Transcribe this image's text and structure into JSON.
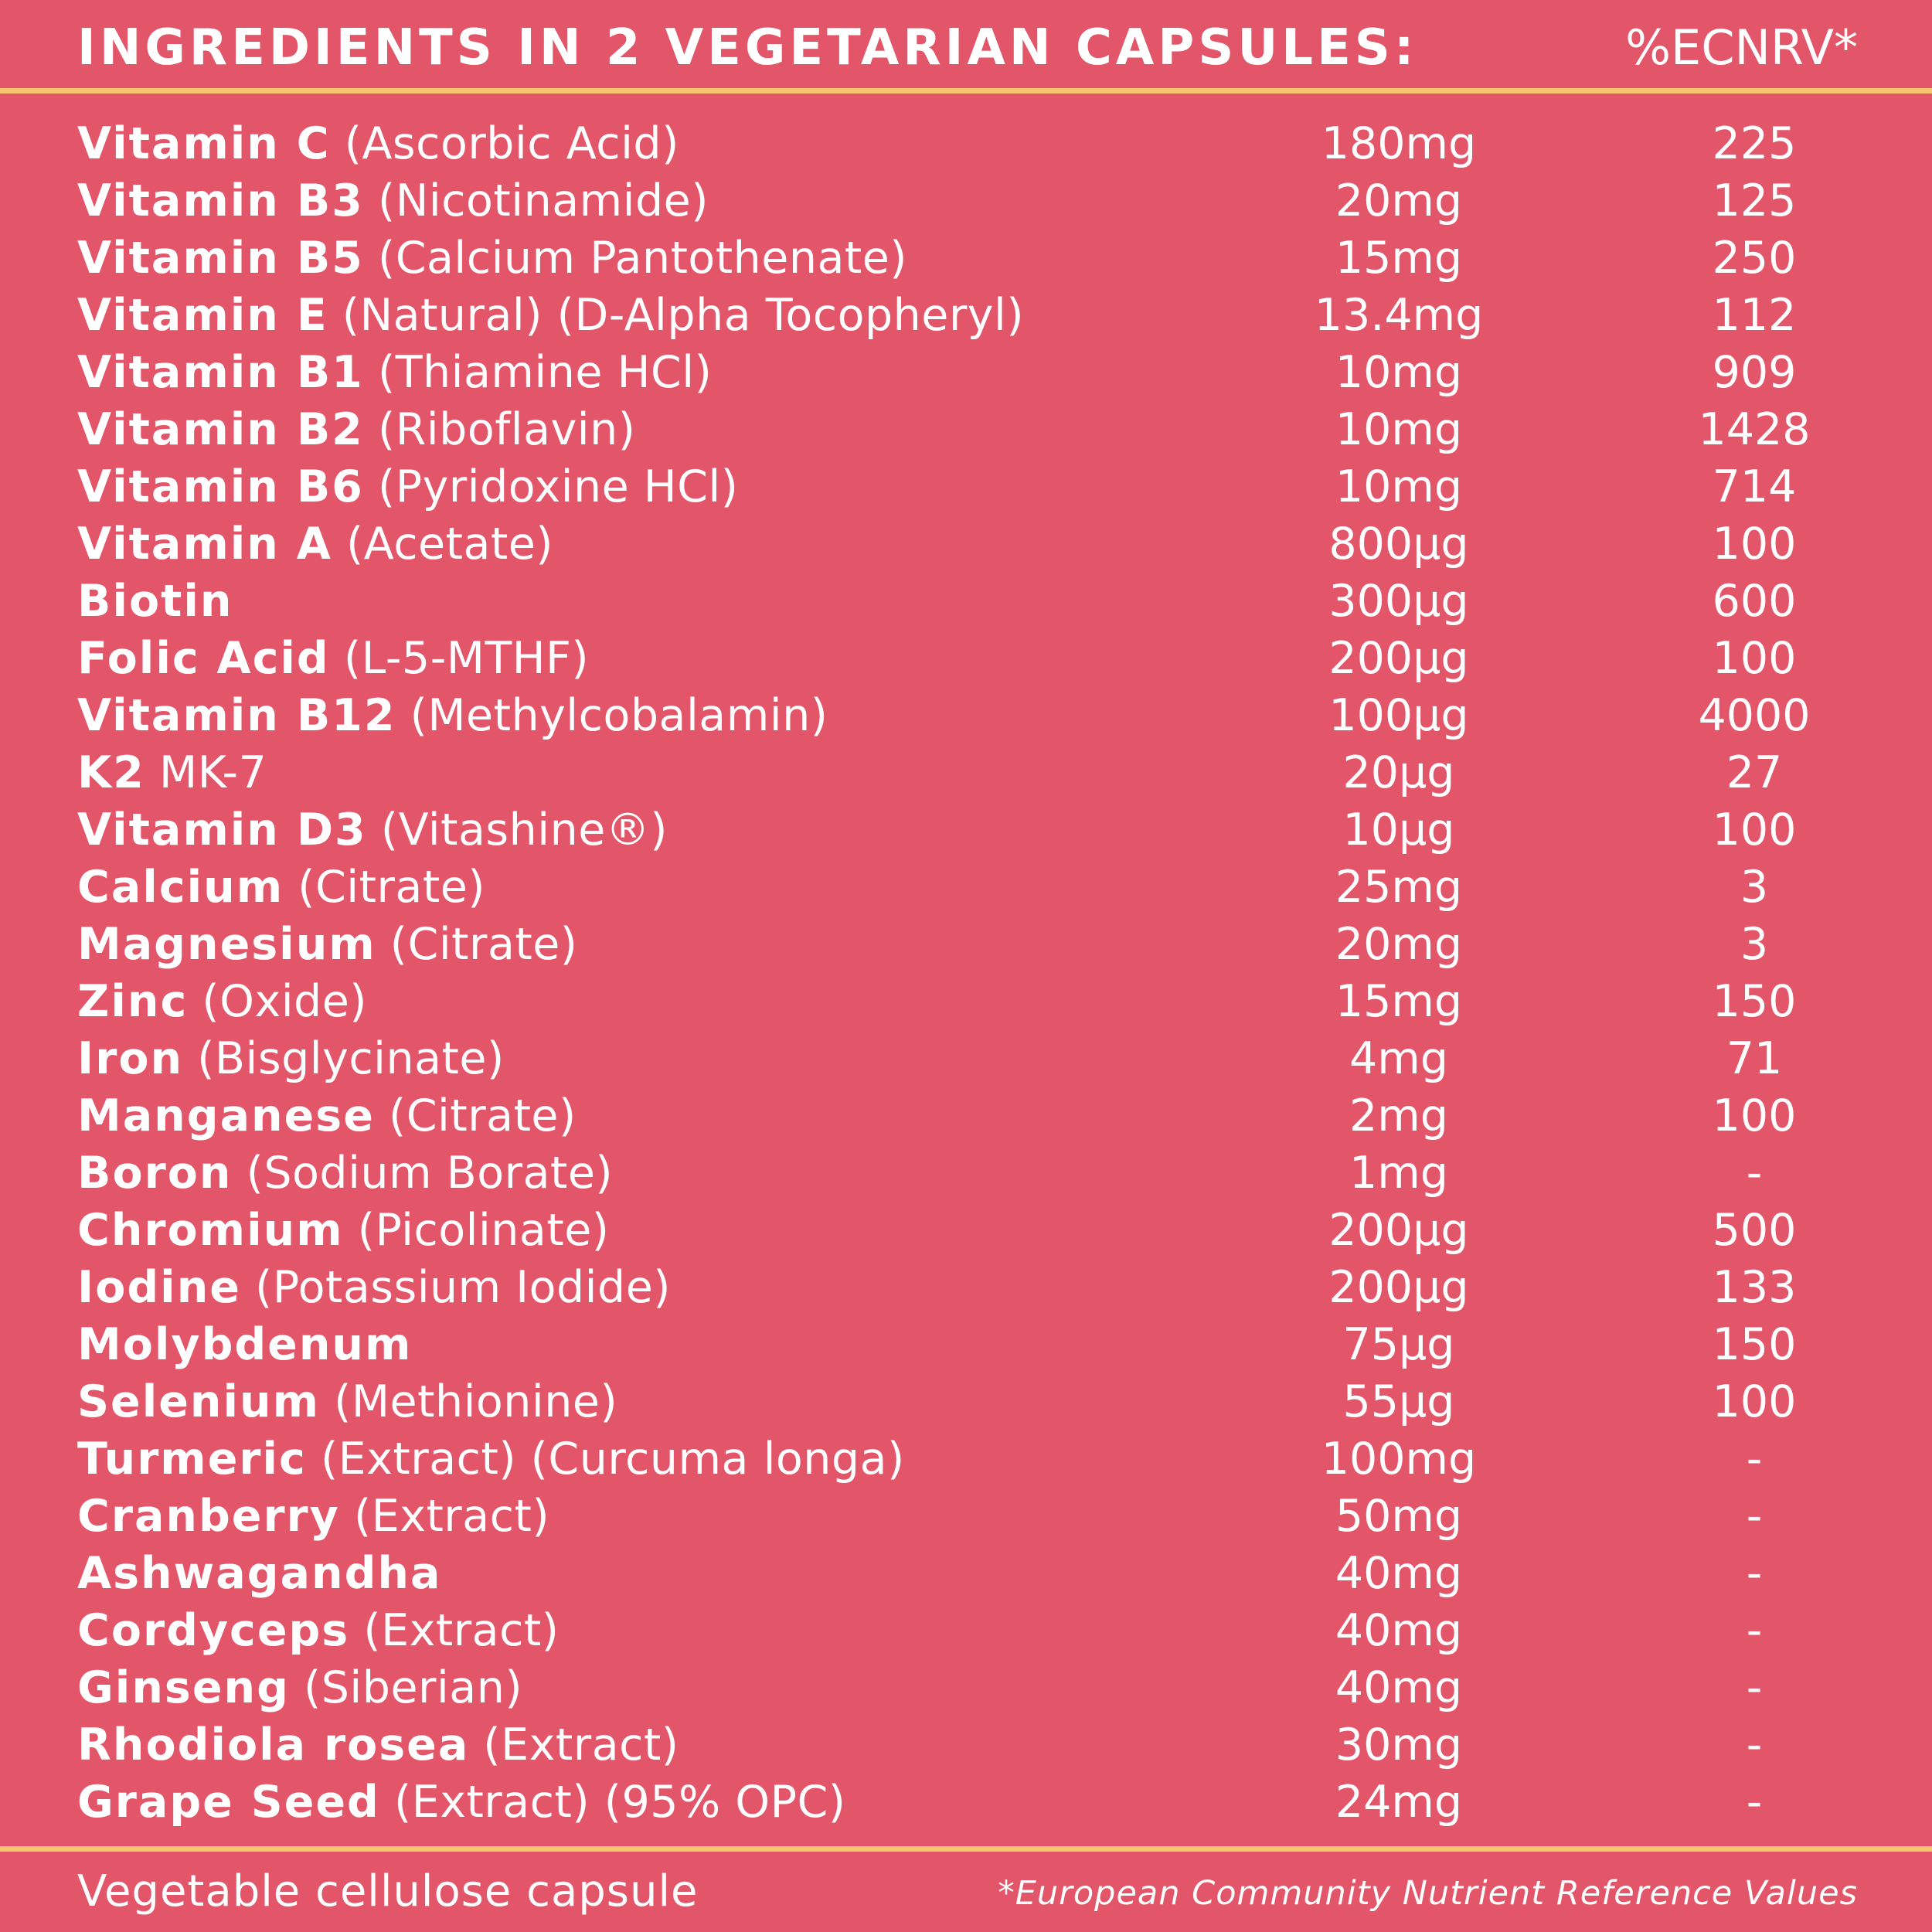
{
  "header": {
    "title": "INGREDIENTS IN 2 VEGETARIAN CAPSULES:",
    "nrv_label": "%ECNRV*"
  },
  "colors": {
    "background": "#e35669",
    "rule": "#f6c56d",
    "text": "#ffffff"
  },
  "ingredients": [
    {
      "name": "Vitamin C",
      "desc": "(Ascorbic Acid)",
      "amount": "180mg",
      "nrv": "225"
    },
    {
      "name": "Vitamin B3",
      "desc": "(Nicotinamide)",
      "amount": "20mg",
      "nrv": "125"
    },
    {
      "name": "Vitamin B5",
      "desc": "(Calcium Pantothenate)",
      "amount": "15mg",
      "nrv": "250"
    },
    {
      "name": "Vitamin E",
      "desc": "(Natural) (D-Alpha Tocopheryl)",
      "amount": "13.4mg",
      "nrv": "112"
    },
    {
      "name": "Vitamin B1",
      "desc": "(Thiamine HCl)",
      "amount": "10mg",
      "nrv": "909"
    },
    {
      "name": "Vitamin B2",
      "desc": "(Riboflavin)",
      "amount": "10mg",
      "nrv": "1428"
    },
    {
      "name": "Vitamin B6",
      "desc": "(Pyridoxine HCl)",
      "amount": "10mg",
      "nrv": "714"
    },
    {
      "name": "Vitamin A",
      "desc": "(Acetate)",
      "amount": "800µg",
      "nrv": "100"
    },
    {
      "name": "Biotin",
      "desc": "",
      "amount": "300µg",
      "nrv": "600"
    },
    {
      "name": "Folic Acid",
      "desc": "(L-5-MTHF)",
      "amount": "200µg",
      "nrv": "100"
    },
    {
      "name": "Vitamin B12",
      "desc": "(Methylcobalamin)",
      "amount": "100µg",
      "nrv": "4000"
    },
    {
      "name": "K2",
      "desc": "MK-7",
      "amount": "20µg",
      "nrv": "27"
    },
    {
      "name": "Vitamin D3",
      "desc": "(Vitashine®)",
      "amount": "10µg",
      "nrv": "100"
    },
    {
      "name": "Calcium",
      "desc": "(Citrate)",
      "amount": "25mg",
      "nrv": "3"
    },
    {
      "name": "Magnesium",
      "desc": "(Citrate)",
      "amount": "20mg",
      "nrv": "3"
    },
    {
      "name": "Zinc",
      "desc": "(Oxide)",
      "amount": "15mg",
      "nrv": "150"
    },
    {
      "name": "Iron",
      "desc": "(Bisglycinate)",
      "amount": "4mg",
      "nrv": "71"
    },
    {
      "name": "Manganese",
      "desc": "(Citrate)",
      "amount": "2mg",
      "nrv": "100"
    },
    {
      "name": "Boron",
      "desc": "(Sodium Borate)",
      "amount": "1mg",
      "nrv": "-"
    },
    {
      "name": "Chromium",
      "desc": "(Picolinate)",
      "amount": "200µg",
      "nrv": "500"
    },
    {
      "name": "Iodine",
      "desc": "(Potassium Iodide)",
      "amount": "200µg",
      "nrv": "133"
    },
    {
      "name": "Molybdenum",
      "desc": "",
      "amount": "75µg",
      "nrv": "150"
    },
    {
      "name": "Selenium",
      "desc": "(Methionine)",
      "amount": "55µg",
      "nrv": "100"
    },
    {
      "name": "Turmeric",
      "desc": "(Extract) (Curcuma longa)",
      "amount": "100mg",
      "nrv": "-"
    },
    {
      "name": "Cranberry",
      "desc": "(Extract)",
      "amount": "50mg",
      "nrv": "-"
    },
    {
      "name": "Ashwagandha",
      "desc": "",
      "amount": "40mg",
      "nrv": "-"
    },
    {
      "name": "Cordyceps",
      "desc": "(Extract)",
      "amount": "40mg",
      "nrv": "-"
    },
    {
      "name": "Ginseng",
      "desc": "(Siberian)",
      "amount": "40mg",
      "nrv": "-"
    },
    {
      "name": "Rhodiola rosea",
      "desc": "(Extract)",
      "amount": "30mg",
      "nrv": "-"
    },
    {
      "name": "Grape Seed",
      "desc": "(Extract) (95% OPC)",
      "amount": "24mg",
      "nrv": "-"
    }
  ],
  "footer": {
    "capsule": "Vegetable cellulose capsule",
    "note": "*European Community Nutrient Reference Values"
  }
}
